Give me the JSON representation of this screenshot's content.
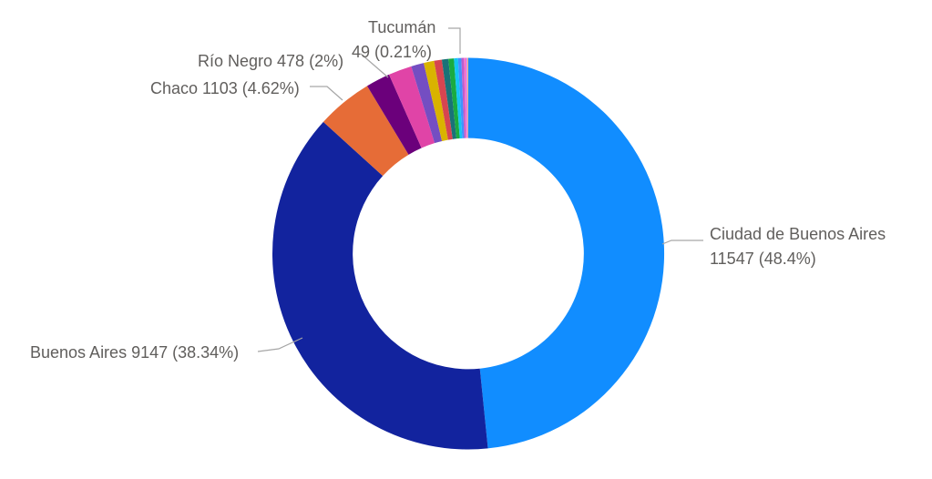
{
  "chart_data": {
    "type": "pie",
    "subtype": "donut",
    "title": "",
    "legend": "none",
    "direction": "clockwise",
    "start_angle_deg": 0,
    "order": "value-descending",
    "inner_radius_ratio": 0.59,
    "total_estimated": 23857,
    "slices": [
      {
        "name": "Ciudad de Buenos Aires",
        "value": 11547,
        "pct_label": "48.4%",
        "color": "#118DFF",
        "labeled": true
      },
      {
        "name": "Buenos Aires",
        "value": 9147,
        "pct_label": "38.34%",
        "color": "#12239E",
        "labeled": true
      },
      {
        "name": "Chaco",
        "value": 1103,
        "pct_label": "4.62%",
        "color": "#E66C37",
        "labeled": true
      },
      {
        "name": "Río Negro",
        "value": 478,
        "pct_label": "2%",
        "color": "#6B007B",
        "labeled": true
      },
      {
        "name": "",
        "value": 460,
        "estimated": true,
        "color": "#E044A7",
        "labeled": false
      },
      {
        "name": "",
        "value": 250,
        "estimated": true,
        "color": "#744EC2",
        "labeled": false
      },
      {
        "name": "",
        "value": 205,
        "estimated": true,
        "color": "#D9B300",
        "labeled": false
      },
      {
        "name": "",
        "value": 152,
        "estimated": true,
        "color": "#D64550",
        "labeled": false
      },
      {
        "name": "",
        "value": 128,
        "estimated": true,
        "color": "#197278",
        "labeled": false
      },
      {
        "name": "",
        "value": 108,
        "estimated": true,
        "color": "#1AAB40",
        "labeled": false
      },
      {
        "name": "",
        "value": 80,
        "estimated": true,
        "color": "#15C6F4",
        "labeled": false
      },
      {
        "name": "",
        "value": 65,
        "estimated": true,
        "color": "#4092FF",
        "labeled": false
      },
      {
        "name": "",
        "value": 50,
        "estimated": true,
        "color": "#BE5DC9",
        "labeled": false
      },
      {
        "name": "Tucumán",
        "value": 49,
        "pct_label": "0.21%",
        "color": "#F472D0",
        "labeled": true
      },
      {
        "name": "",
        "value": 20,
        "estimated": true,
        "color": "#B5A1FF",
        "labeled": false
      },
      {
        "name": "",
        "value": 15,
        "estimated": true,
        "color": "#FFA058",
        "labeled": false
      }
    ]
  },
  "labels": {
    "ciudad_line1": "Ciudad de Buenos Aires",
    "ciudad_line2": "11547 (48.4%)",
    "buenos_aires": "Buenos Aires 9147 (38.34%)",
    "chaco": "Chaco 1103 (4.62%)",
    "rio_negro": "Río Negro 478 (2%)",
    "tucuman_line1": "Tucumán",
    "tucuman_line2": "49 (0.21%)"
  },
  "style": {
    "background": "#FFFFFF",
    "label_color": "#605E5C",
    "leader_line_color": "#A6A6A6"
  }
}
